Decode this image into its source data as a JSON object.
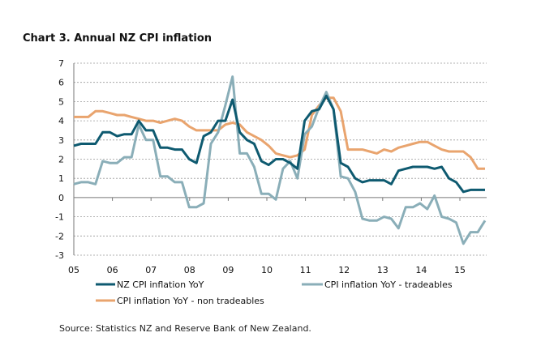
{
  "title": "Chart 3. Annual NZ CPI inflation",
  "source": "Source: Statistics NZ and Reserve Bank of New Zealand.",
  "chart_data": {
    "type": "line",
    "title": "Chart 3. Annual NZ CPI inflation",
    "xlabel": "",
    "ylabel": "",
    "x_frequency": "quarterly",
    "x_start": "2005Q1",
    "categories": [
      "05",
      "06",
      "07",
      "08",
      "09",
      "10",
      "11",
      "12",
      "13",
      "14",
      "15"
    ],
    "yticks": [
      -3,
      -2,
      -1,
      0,
      1,
      2,
      3,
      4,
      5,
      6,
      7
    ],
    "ylim": [
      -3,
      7
    ],
    "grid": true,
    "legend_position": "bottom",
    "series": [
      {
        "name": "NZ CPI inflation YoY",
        "color": "#0e5a70",
        "values": [
          2.7,
          2.8,
          2.8,
          2.8,
          3.4,
          3.4,
          3.2,
          3.3,
          3.3,
          4.0,
          3.5,
          3.5,
          2.6,
          2.6,
          2.5,
          2.5,
          2.0,
          1.8,
          3.2,
          3.4,
          4.0,
          4.0,
          5.1,
          3.4,
          3.0,
          2.8,
          1.9,
          1.7,
          2.0,
          2.0,
          1.8,
          1.5,
          4.0,
          4.5,
          4.6,
          5.3,
          4.6,
          1.8,
          1.6,
          1.0,
          0.8,
          0.9,
          0.9,
          0.9,
          0.7,
          1.4,
          1.5,
          1.6,
          1.6,
          1.6,
          1.5,
          1.6,
          1.0,
          0.8,
          0.3,
          0.4,
          0.4,
          0.4
        ]
      },
      {
        "name": "CPI inflation YoY - tradeables",
        "color": "#8aaeb8",
        "values": [
          0.7,
          0.8,
          0.8,
          0.7,
          1.9,
          1.8,
          1.8,
          2.1,
          2.1,
          3.8,
          3.0,
          3.0,
          1.1,
          1.1,
          0.8,
          0.8,
          -0.5,
          -0.5,
          -0.3,
          2.8,
          3.4,
          4.8,
          6.3,
          2.3,
          2.3,
          1.6,
          0.2,
          0.2,
          -0.1,
          1.5,
          1.9,
          1.0,
          3.3,
          3.7,
          4.7,
          5.5,
          4.6,
          1.1,
          1.0,
          0.3,
          -1.1,
          -1.2,
          -1.2,
          -1.0,
          -1.1,
          -1.6,
          -0.5,
          -0.5,
          -0.3,
          -0.6,
          0.1,
          -1.0,
          -1.1,
          -1.3,
          -2.4,
          -1.8,
          -1.8,
          -1.2
        ]
      },
      {
        "name": "CPI inflation YoY - non tradeables",
        "color": "#e9a46e",
        "values": [
          4.2,
          4.2,
          4.2,
          4.5,
          4.5,
          4.4,
          4.3,
          4.3,
          4.2,
          4.1,
          4.0,
          4.0,
          3.9,
          4.0,
          4.1,
          4.0,
          3.7,
          3.5,
          3.5,
          3.5,
          3.5,
          3.8,
          3.9,
          3.8,
          3.4,
          3.2,
          3.0,
          2.7,
          2.3,
          2.2,
          2.1,
          2.2,
          2.5,
          4.3,
          4.8,
          5.2,
          5.2,
          4.5,
          2.5,
          2.5,
          2.5,
          2.4,
          2.3,
          2.5,
          2.4,
          2.6,
          2.7,
          2.8,
          2.9,
          2.9,
          2.7,
          2.5,
          2.4,
          2.4,
          2.4,
          2.1,
          1.5,
          1.5
        ]
      }
    ]
  },
  "legend": [
    {
      "label": "NZ CPI inflation YoY"
    },
    {
      "label": "CPI inflation  YoY - tradeables"
    },
    {
      "label": "CPI inflation  YoY - non tradeables"
    }
  ]
}
